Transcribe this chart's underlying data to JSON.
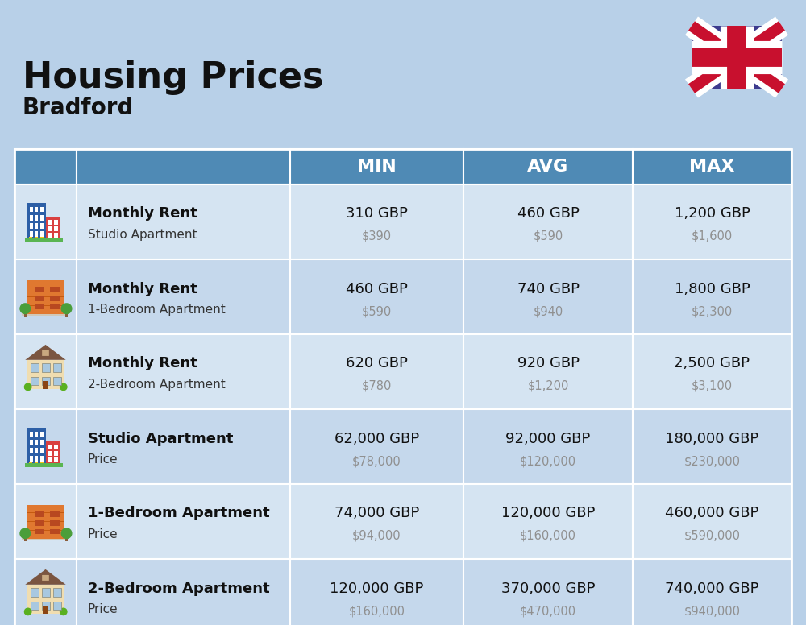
{
  "title": "Housing Prices",
  "subtitle": "Bradford",
  "bg_color": "#b8d0e8",
  "header_bg": "#4f8ab5",
  "row_bg_even": "#c5d8ec",
  "row_bg_odd": "#d5e4f2",
  "title_color": "#111111",
  "subtitle_color": "#111111",
  "col_headers": [
    "MIN",
    "AVG",
    "MAX"
  ],
  "rows": [
    {
      "bold_label": "Monthly Rent",
      "sub_label": "Studio Apartment",
      "min_gbp": "310 GBP",
      "min_usd": "$390",
      "avg_gbp": "460 GBP",
      "avg_usd": "$590",
      "max_gbp": "1,200 GBP",
      "max_usd": "$1,600",
      "icon_type": "blue_tower"
    },
    {
      "bold_label": "Monthly Rent",
      "sub_label": "1-Bedroom Apartment",
      "min_gbp": "460 GBP",
      "min_usd": "$590",
      "avg_gbp": "740 GBP",
      "avg_usd": "$940",
      "max_gbp": "1,800 GBP",
      "max_usd": "$2,300",
      "icon_type": "orange_apartment"
    },
    {
      "bold_label": "Monthly Rent",
      "sub_label": "2-Bedroom Apartment",
      "min_gbp": "620 GBP",
      "min_usd": "$780",
      "avg_gbp": "920 GBP",
      "avg_usd": "$1,200",
      "max_gbp": "2,500 GBP",
      "max_usd": "$3,100",
      "icon_type": "beige_house"
    },
    {
      "bold_label": "Studio Apartment",
      "sub_label": "Price",
      "min_gbp": "62,000 GBP",
      "min_usd": "$78,000",
      "avg_gbp": "92,000 GBP",
      "avg_usd": "$120,000",
      "max_gbp": "180,000 GBP",
      "max_usd": "$230,000",
      "icon_type": "blue_tower"
    },
    {
      "bold_label": "1-Bedroom Apartment",
      "sub_label": "Price",
      "min_gbp": "74,000 GBP",
      "min_usd": "$94,000",
      "avg_gbp": "120,000 GBP",
      "avg_usd": "$160,000",
      "max_gbp": "460,000 GBP",
      "max_usd": "$590,000",
      "icon_type": "orange_apartment"
    },
    {
      "bold_label": "2-Bedroom Apartment",
      "sub_label": "Price",
      "min_gbp": "120,000 GBP",
      "min_usd": "$160,000",
      "avg_gbp": "370,000 GBP",
      "avg_usd": "$470,000",
      "max_gbp": "740,000 GBP",
      "max_usd": "$940,000",
      "icon_type": "beige_house"
    }
  ]
}
